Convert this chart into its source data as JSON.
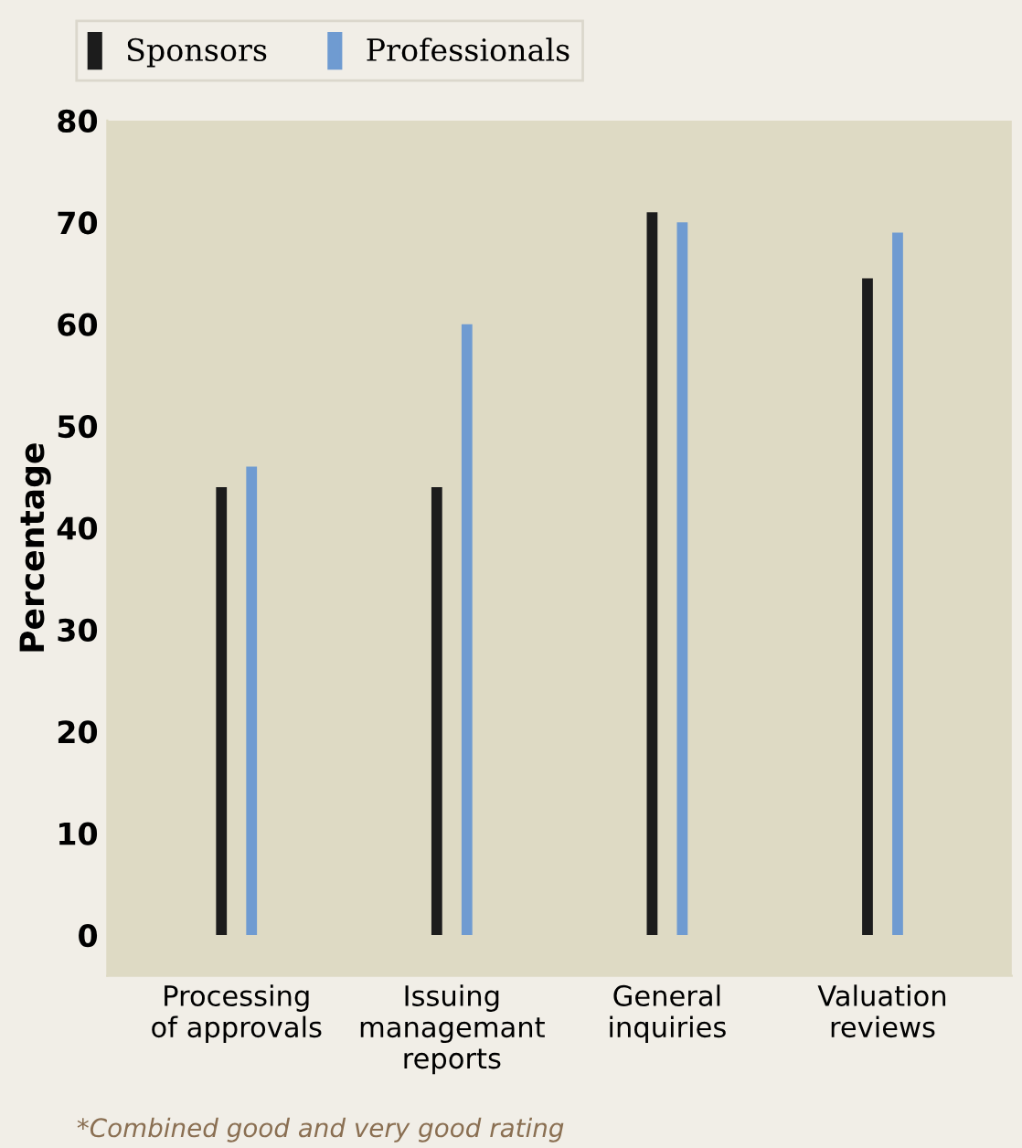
{
  "chart_data": {
    "type": "bar",
    "ylabel": "Percentage",
    "categories": [
      "Processing\nof approvals",
      "Issuing\nmanagemant\nreports",
      "General\ninquiries",
      "Valuation\nreviews"
    ],
    "series": [
      {
        "name": "Sponsors",
        "color": "#1c1c1c",
        "values": [
          44,
          44,
          71,
          64.5
        ]
      },
      {
        "name": "Professionals",
        "color": "#6f9bd1",
        "values": [
          46,
          60,
          70,
          69
        ]
      }
    ],
    "ylim": [
      -4,
      80
    ],
    "yticks": [
      0,
      10,
      20,
      30,
      40,
      50,
      60,
      70,
      80
    ],
    "grid": false,
    "legend": "top left",
    "annotations": [
      "*Combined good and very good rating"
    ]
  }
}
